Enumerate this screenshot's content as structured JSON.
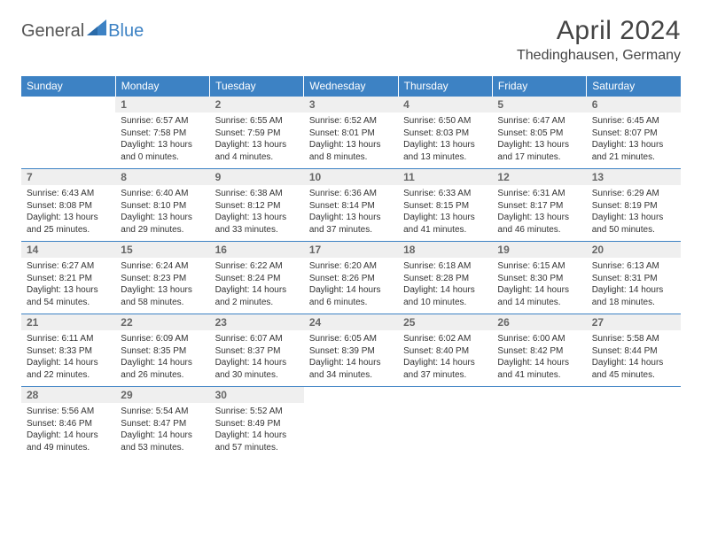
{
  "logo": {
    "text1": "General",
    "text2": "Blue",
    "icon_color": "#3d82c4"
  },
  "title": "April 2024",
  "location": "Thedinghausen, Germany",
  "colors": {
    "header_bg": "#3d82c4",
    "header_text": "#ffffff",
    "daynum_bg": "#efefef",
    "daynum_text": "#666666",
    "border": "#3d82c4",
    "body_text": "#333333"
  },
  "day_headers": [
    "Sunday",
    "Monday",
    "Tuesday",
    "Wednesday",
    "Thursday",
    "Friday",
    "Saturday"
  ],
  "weeks": [
    [
      {
        "num": "",
        "sunrise": "",
        "sunset": "",
        "daylight": ""
      },
      {
        "num": "1",
        "sunrise": "Sunrise: 6:57 AM",
        "sunset": "Sunset: 7:58 PM",
        "daylight": "Daylight: 13 hours and 0 minutes."
      },
      {
        "num": "2",
        "sunrise": "Sunrise: 6:55 AM",
        "sunset": "Sunset: 7:59 PM",
        "daylight": "Daylight: 13 hours and 4 minutes."
      },
      {
        "num": "3",
        "sunrise": "Sunrise: 6:52 AM",
        "sunset": "Sunset: 8:01 PM",
        "daylight": "Daylight: 13 hours and 8 minutes."
      },
      {
        "num": "4",
        "sunrise": "Sunrise: 6:50 AM",
        "sunset": "Sunset: 8:03 PM",
        "daylight": "Daylight: 13 hours and 13 minutes."
      },
      {
        "num": "5",
        "sunrise": "Sunrise: 6:47 AM",
        "sunset": "Sunset: 8:05 PM",
        "daylight": "Daylight: 13 hours and 17 minutes."
      },
      {
        "num": "6",
        "sunrise": "Sunrise: 6:45 AM",
        "sunset": "Sunset: 8:07 PM",
        "daylight": "Daylight: 13 hours and 21 minutes."
      }
    ],
    [
      {
        "num": "7",
        "sunrise": "Sunrise: 6:43 AM",
        "sunset": "Sunset: 8:08 PM",
        "daylight": "Daylight: 13 hours and 25 minutes."
      },
      {
        "num": "8",
        "sunrise": "Sunrise: 6:40 AM",
        "sunset": "Sunset: 8:10 PM",
        "daylight": "Daylight: 13 hours and 29 minutes."
      },
      {
        "num": "9",
        "sunrise": "Sunrise: 6:38 AM",
        "sunset": "Sunset: 8:12 PM",
        "daylight": "Daylight: 13 hours and 33 minutes."
      },
      {
        "num": "10",
        "sunrise": "Sunrise: 6:36 AM",
        "sunset": "Sunset: 8:14 PM",
        "daylight": "Daylight: 13 hours and 37 minutes."
      },
      {
        "num": "11",
        "sunrise": "Sunrise: 6:33 AM",
        "sunset": "Sunset: 8:15 PM",
        "daylight": "Daylight: 13 hours and 41 minutes."
      },
      {
        "num": "12",
        "sunrise": "Sunrise: 6:31 AM",
        "sunset": "Sunset: 8:17 PM",
        "daylight": "Daylight: 13 hours and 46 minutes."
      },
      {
        "num": "13",
        "sunrise": "Sunrise: 6:29 AM",
        "sunset": "Sunset: 8:19 PM",
        "daylight": "Daylight: 13 hours and 50 minutes."
      }
    ],
    [
      {
        "num": "14",
        "sunrise": "Sunrise: 6:27 AM",
        "sunset": "Sunset: 8:21 PM",
        "daylight": "Daylight: 13 hours and 54 minutes."
      },
      {
        "num": "15",
        "sunrise": "Sunrise: 6:24 AM",
        "sunset": "Sunset: 8:23 PM",
        "daylight": "Daylight: 13 hours and 58 minutes."
      },
      {
        "num": "16",
        "sunrise": "Sunrise: 6:22 AM",
        "sunset": "Sunset: 8:24 PM",
        "daylight": "Daylight: 14 hours and 2 minutes."
      },
      {
        "num": "17",
        "sunrise": "Sunrise: 6:20 AM",
        "sunset": "Sunset: 8:26 PM",
        "daylight": "Daylight: 14 hours and 6 minutes."
      },
      {
        "num": "18",
        "sunrise": "Sunrise: 6:18 AM",
        "sunset": "Sunset: 8:28 PM",
        "daylight": "Daylight: 14 hours and 10 minutes."
      },
      {
        "num": "19",
        "sunrise": "Sunrise: 6:15 AM",
        "sunset": "Sunset: 8:30 PM",
        "daylight": "Daylight: 14 hours and 14 minutes."
      },
      {
        "num": "20",
        "sunrise": "Sunrise: 6:13 AM",
        "sunset": "Sunset: 8:31 PM",
        "daylight": "Daylight: 14 hours and 18 minutes."
      }
    ],
    [
      {
        "num": "21",
        "sunrise": "Sunrise: 6:11 AM",
        "sunset": "Sunset: 8:33 PM",
        "daylight": "Daylight: 14 hours and 22 minutes."
      },
      {
        "num": "22",
        "sunrise": "Sunrise: 6:09 AM",
        "sunset": "Sunset: 8:35 PM",
        "daylight": "Daylight: 14 hours and 26 minutes."
      },
      {
        "num": "23",
        "sunrise": "Sunrise: 6:07 AM",
        "sunset": "Sunset: 8:37 PM",
        "daylight": "Daylight: 14 hours and 30 minutes."
      },
      {
        "num": "24",
        "sunrise": "Sunrise: 6:05 AM",
        "sunset": "Sunset: 8:39 PM",
        "daylight": "Daylight: 14 hours and 34 minutes."
      },
      {
        "num": "25",
        "sunrise": "Sunrise: 6:02 AM",
        "sunset": "Sunset: 8:40 PM",
        "daylight": "Daylight: 14 hours and 37 minutes."
      },
      {
        "num": "26",
        "sunrise": "Sunrise: 6:00 AM",
        "sunset": "Sunset: 8:42 PM",
        "daylight": "Daylight: 14 hours and 41 minutes."
      },
      {
        "num": "27",
        "sunrise": "Sunrise: 5:58 AM",
        "sunset": "Sunset: 8:44 PM",
        "daylight": "Daylight: 14 hours and 45 minutes."
      }
    ],
    [
      {
        "num": "28",
        "sunrise": "Sunrise: 5:56 AM",
        "sunset": "Sunset: 8:46 PM",
        "daylight": "Daylight: 14 hours and 49 minutes."
      },
      {
        "num": "29",
        "sunrise": "Sunrise: 5:54 AM",
        "sunset": "Sunset: 8:47 PM",
        "daylight": "Daylight: 14 hours and 53 minutes."
      },
      {
        "num": "30",
        "sunrise": "Sunrise: 5:52 AM",
        "sunset": "Sunset: 8:49 PM",
        "daylight": "Daylight: 14 hours and 57 minutes."
      },
      {
        "num": "",
        "sunrise": "",
        "sunset": "",
        "daylight": ""
      },
      {
        "num": "",
        "sunrise": "",
        "sunset": "",
        "daylight": ""
      },
      {
        "num": "",
        "sunrise": "",
        "sunset": "",
        "daylight": ""
      },
      {
        "num": "",
        "sunrise": "",
        "sunset": "",
        "daylight": ""
      }
    ]
  ]
}
